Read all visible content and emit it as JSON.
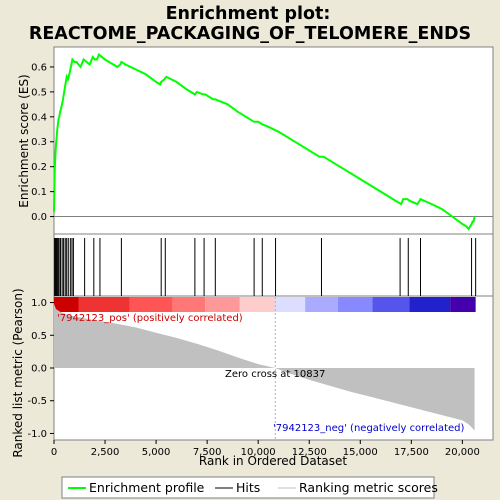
{
  "title_line1": "Enrichment plot:",
  "title_line2": "REACTOME_PACKAGING_OF_TELOMERE_ENDS",
  "legend": {
    "items": [
      {
        "label": "Enrichment profile",
        "color": "#00ff00"
      },
      {
        "label": "Hits",
        "color": "#000000"
      },
      {
        "label": "Ranking metric scores",
        "color": "#c0c0c0"
      }
    ]
  },
  "chart_data": [
    {
      "type": "line",
      "ylabel": "Enrichment score (ES)",
      "ylim": [
        -0.07,
        0.68
      ],
      "yticks": [
        "0.0",
        "0.1",
        "0.2",
        "0.3",
        "0.4",
        "0.5",
        "0.6"
      ],
      "xlim": [
        0,
        21500
      ],
      "grid": false,
      "color": "#00ff00",
      "series": [
        {
          "x": [
            0,
            20,
            40,
            60,
            80,
            100,
            130,
            160,
            190,
            220,
            260,
            300,
            340,
            390,
            440,
            500,
            560,
            620,
            680,
            750,
            830,
            900,
            1000,
            1100,
            1200,
            1300,
            1450,
            1600,
            1750,
            1900,
            2000,
            2100,
            2200,
            2350,
            2500,
            2700,
            2900,
            3100,
            3250,
            3300,
            3500,
            4000,
            4500,
            5000,
            5200,
            5250,
            5400,
            5500,
            6000,
            6500,
            6900,
            7000,
            7300,
            7400,
            7800,
            7900,
            8500,
            9000,
            9800,
            10000,
            10200,
            10500,
            11000,
            12000,
            13000,
            13200,
            14000,
            15000,
            16000,
            16800,
            17000,
            17100,
            17300,
            17500,
            17800,
            17950,
            18500,
            19000,
            19500,
            20000,
            20200,
            20300,
            20450,
            20500,
            20550,
            20600
          ],
          "y": [
            0.02,
            0.12,
            0.19,
            0.23,
            0.26,
            0.29,
            0.32,
            0.35,
            0.37,
            0.39,
            0.4,
            0.42,
            0.43,
            0.45,
            0.47,
            0.5,
            0.53,
            0.56,
            0.55,
            0.57,
            0.6,
            0.63,
            0.62,
            0.62,
            0.61,
            0.6,
            0.63,
            0.62,
            0.61,
            0.64,
            0.63,
            0.63,
            0.65,
            0.64,
            0.63,
            0.62,
            0.61,
            0.6,
            0.61,
            0.62,
            0.61,
            0.59,
            0.57,
            0.54,
            0.53,
            0.54,
            0.55,
            0.56,
            0.54,
            0.51,
            0.49,
            0.5,
            0.49,
            0.49,
            0.47,
            0.47,
            0.45,
            0.42,
            0.38,
            0.38,
            0.37,
            0.36,
            0.34,
            0.29,
            0.24,
            0.24,
            0.2,
            0.15,
            0.1,
            0.06,
            0.05,
            0.07,
            0.07,
            0.06,
            0.05,
            0.07,
            0.05,
            0.03,
            0.0,
            -0.03,
            -0.04,
            -0.05,
            -0.03,
            -0.02,
            -0.02,
            0.0
          ]
        }
      ]
    },
    {
      "type": "scatter",
      "name": "Hits",
      "xlim": [
        0,
        21500
      ],
      "x": [
        30,
        70,
        110,
        150,
        200,
        250,
        320,
        400,
        470,
        550,
        620,
        700,
        800,
        880,
        950,
        1500,
        1950,
        2250,
        3300,
        5250,
        5450,
        6900,
        7350,
        7900,
        9800,
        10200,
        10850,
        13100,
        16950,
        17350,
        17950,
        20450,
        20650
      ]
    },
    {
      "type": "area",
      "ylabel": "Ranked list metric (Pearson)",
      "xlabel": "Rank in Ordered Dataset",
      "ylim": [
        -1.1,
        1.1
      ],
      "yticks": [
        "-1.0",
        "-0.5",
        "0.0",
        "0.5",
        "1.0"
      ],
      "xticks": [
        "0",
        "2,500",
        "5,000",
        "7,500",
        "10,000",
        "12,500",
        "15,000",
        "17,500",
        "20,000"
      ],
      "xlim": [
        0,
        21500
      ],
      "color": "#c0c0c0",
      "series": [
        {
          "x": [
            0,
            100,
            300,
            600,
            1000,
            1500,
            2000,
            3000,
            4000,
            5000,
            6000,
            7000,
            8000,
            9000,
            10000,
            10837,
            11500,
            12500,
            13500,
            14500,
            15500,
            16500,
            17500,
            18500,
            19500,
            20000,
            20300,
            20500,
            20600
          ],
          "y": [
            0.98,
            0.9,
            0.86,
            0.82,
            0.79,
            0.76,
            0.73,
            0.68,
            0.62,
            0.54,
            0.46,
            0.37,
            0.27,
            0.16,
            0.06,
            0.0,
            -0.08,
            -0.18,
            -0.27,
            -0.36,
            -0.44,
            -0.52,
            -0.6,
            -0.68,
            -0.76,
            -0.8,
            -0.86,
            -0.92,
            -0.96
          ]
        }
      ],
      "annotations": {
        "pos": "'7942123_pos' (positively correlated)",
        "zero": "Zero cross at 10837",
        "neg": "'7942123_neg' (negatively correlated)"
      },
      "zero_cross": 10837,
      "bands": [
        {
          "from": 0,
          "to": 1200,
          "color": "#cc0000"
        },
        {
          "from": 1200,
          "to": 3700,
          "color": "#ee3333"
        },
        {
          "from": 3700,
          "to": 5800,
          "color": "#ff5555"
        },
        {
          "from": 5800,
          "to": 7400,
          "color": "#ff7777"
        },
        {
          "from": 7400,
          "to": 9100,
          "color": "#ff9999"
        },
        {
          "from": 9100,
          "to": 10800,
          "color": "#ffcccc"
        },
        {
          "from": 10800,
          "to": 12300,
          "color": "#ddddff"
        },
        {
          "from": 12300,
          "to": 13900,
          "color": "#aaaaff"
        },
        {
          "from": 13900,
          "to": 15600,
          "color": "#8888ff"
        },
        {
          "from": 15600,
          "to": 17400,
          "color": "#5555ee"
        },
        {
          "from": 17400,
          "to": 19400,
          "color": "#2222cc"
        },
        {
          "from": 19400,
          "to": 20650,
          "color": "#4400aa"
        }
      ]
    }
  ]
}
